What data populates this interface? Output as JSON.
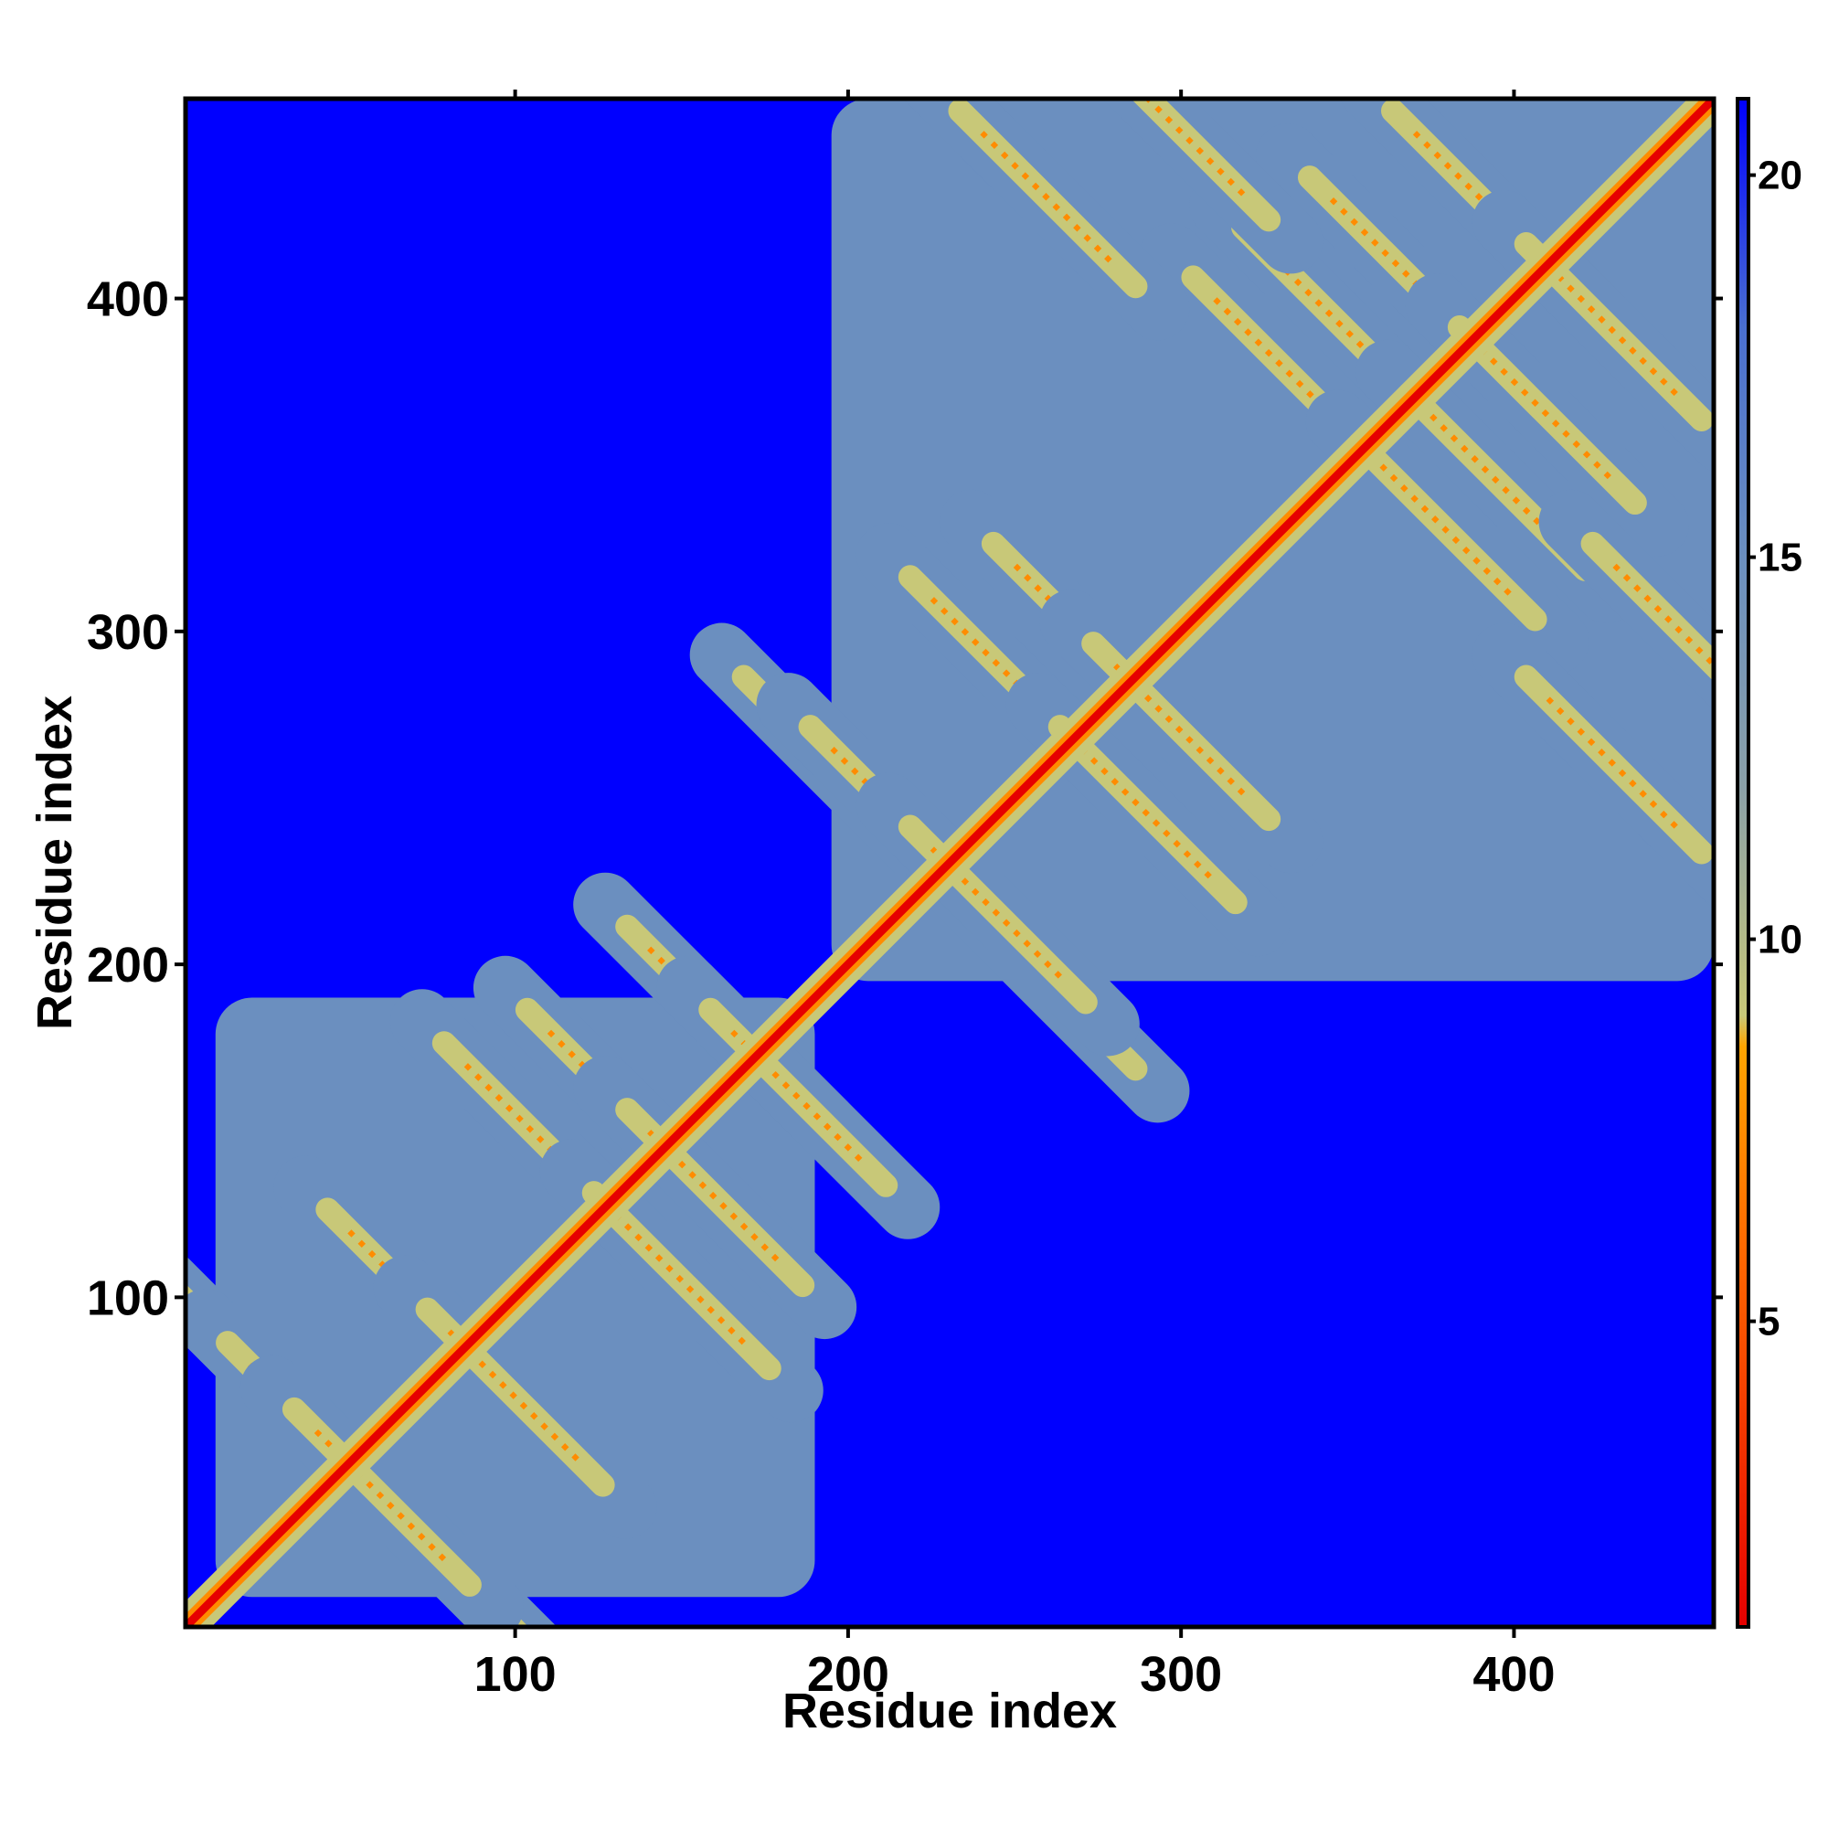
{
  "chart_data": {
    "type": "heatmap",
    "title": "",
    "xlabel": "Residue index",
    "ylabel": "Residue index",
    "x_range": [
      1,
      460
    ],
    "y_range": [
      1,
      460
    ],
    "x_ticks": [
      100,
      200,
      300,
      400
    ],
    "y_ticks": [
      100,
      200,
      300,
      400
    ],
    "colorbar": {
      "range": [
        1,
        21
      ],
      "ticks": [
        5,
        10,
        15,
        20
      ],
      "colors": {
        "very_close": "#e60000",
        "close": "#ff8c00",
        "mid": "#c8c878",
        "medium": "#6b8fbf",
        "far": "#0000ff"
      }
    },
    "domains": [
      {
        "start": 10,
        "end": 190
      },
      {
        "start": 195,
        "end": 460
      }
    ],
    "contact_bands": [
      {
        "a": 25,
        "b": 75
      },
      {
        "a": 40,
        "b": 60
      },
      {
        "a": 70,
        "b": 100
      },
      {
        "a": 105,
        "b": 150
      },
      {
        "a": 130,
        "b": 160
      },
      {
        "a": 160,
        "b": 185
      },
      {
        "a": 195,
        "b": 260
      },
      {
        "a": 215,
        "b": 245
      },
      {
        "a": 245,
        "b": 290
      },
      {
        "a": 270,
        "b": 300
      },
      {
        "a": 330,
        "b": 380
      },
      {
        "a": 345,
        "b": 395
      },
      {
        "a": 365,
        "b": 410
      },
      {
        "a": 390,
        "b": 430
      },
      {
        "a": 250,
        "b": 440
      },
      {
        "a": 260,
        "b": 430
      },
      {
        "a": 300,
        "b": 450
      }
    ]
  }
}
